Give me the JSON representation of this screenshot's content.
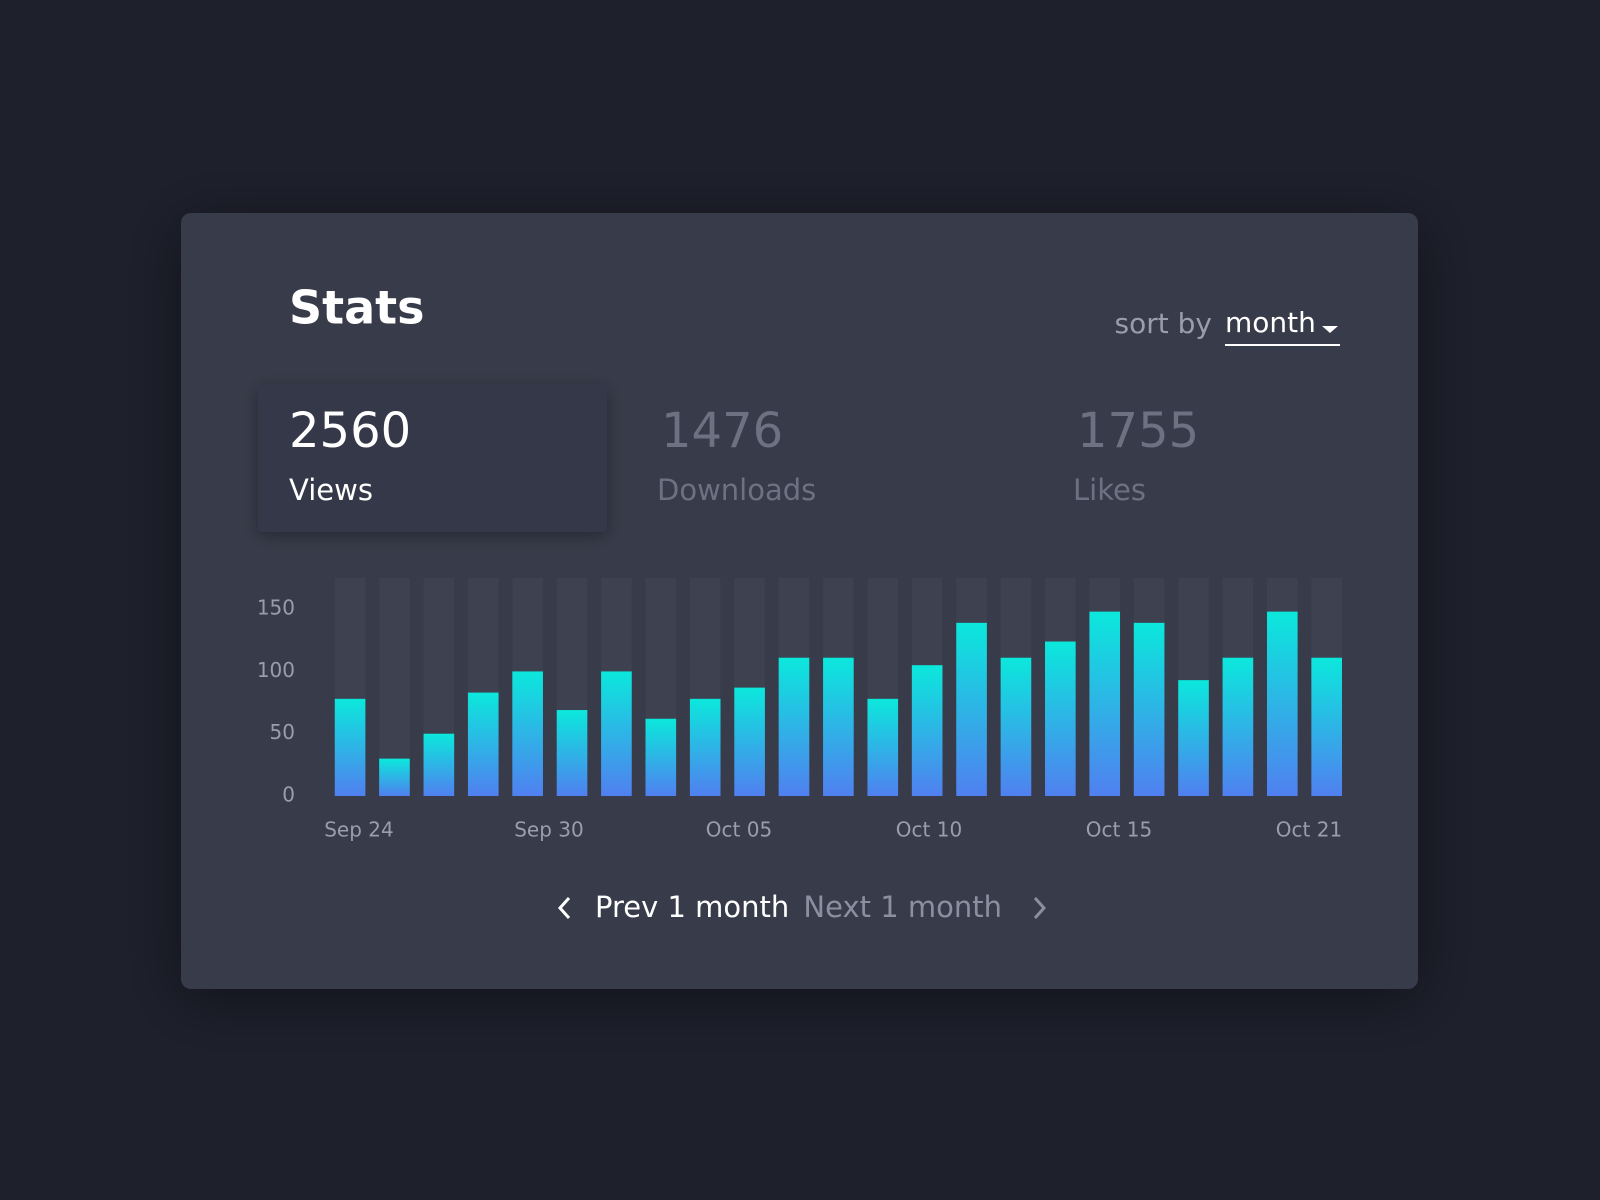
{
  "header": {
    "title": "Stats"
  },
  "sort": {
    "label": "sort by",
    "value": "month"
  },
  "stats": [
    {
      "value": 2560,
      "label": "Views"
    },
    {
      "value": 1476,
      "label": "Downloads"
    },
    {
      "value": 1755,
      "label": "Likes"
    }
  ],
  "chart_data": {
    "type": "bar",
    "values": [
      78,
      30,
      50,
      83,
      100,
      69,
      100,
      62,
      78,
      87,
      111,
      111,
      78,
      105,
      139,
      111,
      124,
      148,
      139,
      93,
      111,
      148,
      111
    ],
    "x_labels": [
      "Sep 24",
      "Sep 30",
      "Oct 05",
      "Oct 10",
      "Oct 15",
      "Oct 21"
    ],
    "ylim": [
      0,
      175
    ],
    "yticks": [
      0,
      50,
      100,
      150
    ],
    "color": "#0be8dc",
    "color_bottom": "#5080f0",
    "track_color": "#3d4150"
  },
  "nav": {
    "prev": "Prev 1 month",
    "next": "Next 1 month"
  }
}
